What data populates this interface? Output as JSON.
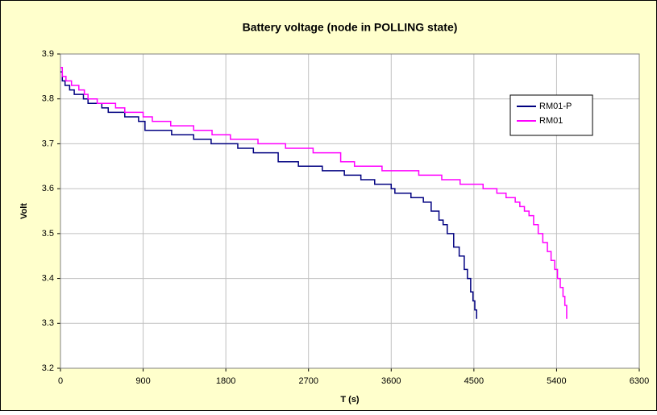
{
  "chart_data": {
    "type": "line",
    "step": true,
    "title": "Battery voltage (node in POLLING state)",
    "xlabel": "T (s)",
    "ylabel": "Volt",
    "xlim": [
      0,
      6300
    ],
    "xticks": [
      0,
      900,
      1800,
      2700,
      3600,
      4500,
      5400,
      6300
    ],
    "ylim": [
      3.2,
      3.9
    ],
    "yticks": [
      3.2,
      3.3,
      3.4,
      3.5,
      3.6,
      3.7,
      3.8,
      3.9
    ],
    "grid": true,
    "legend": "upper right",
    "series": [
      {
        "name": "RM01-P",
        "color": "#000080",
        "x": [
          0,
          20,
          50,
          100,
          150,
          250,
          300,
          450,
          520,
          700,
          850,
          920,
          1210,
          1450,
          1640,
          1930,
          2100,
          2370,
          2590,
          2850,
          3090,
          3270,
          3420,
          3600,
          3640,
          3815,
          3950,
          4035,
          4120,
          4165,
          4210,
          4280,
          4340,
          4395,
          4430,
          4465,
          4490,
          4510,
          4530
        ],
        "values": [
          3.86,
          3.84,
          3.83,
          3.82,
          3.81,
          3.8,
          3.79,
          3.78,
          3.77,
          3.76,
          3.75,
          3.73,
          3.72,
          3.71,
          3.7,
          3.69,
          3.68,
          3.66,
          3.65,
          3.64,
          3.63,
          3.62,
          3.61,
          3.6,
          3.59,
          3.58,
          3.57,
          3.55,
          3.53,
          3.52,
          3.5,
          3.47,
          3.45,
          3.42,
          3.4,
          3.37,
          3.35,
          3.33,
          3.31
        ]
      },
      {
        "name": "RM01",
        "color": "#ff00ff",
        "x": [
          0,
          20,
          60,
          120,
          200,
          260,
          300,
          400,
          600,
          700,
          900,
          1000,
          1200,
          1450,
          1650,
          1850,
          2150,
          2450,
          2750,
          3050,
          3200,
          3500,
          3900,
          4150,
          4350,
          4600,
          4750,
          4850,
          4950,
          5000,
          5050,
          5100,
          5150,
          5200,
          5250,
          5300,
          5340,
          5380,
          5410,
          5440,
          5470,
          5490,
          5510
        ],
        "values": [
          3.87,
          3.85,
          3.84,
          3.83,
          3.82,
          3.81,
          3.8,
          3.79,
          3.78,
          3.77,
          3.76,
          3.75,
          3.74,
          3.73,
          3.72,
          3.71,
          3.7,
          3.69,
          3.68,
          3.66,
          3.65,
          3.64,
          3.63,
          3.62,
          3.61,
          3.6,
          3.59,
          3.58,
          3.57,
          3.56,
          3.55,
          3.54,
          3.52,
          3.5,
          3.48,
          3.46,
          3.44,
          3.42,
          3.4,
          3.38,
          3.36,
          3.34,
          3.31
        ]
      }
    ]
  }
}
